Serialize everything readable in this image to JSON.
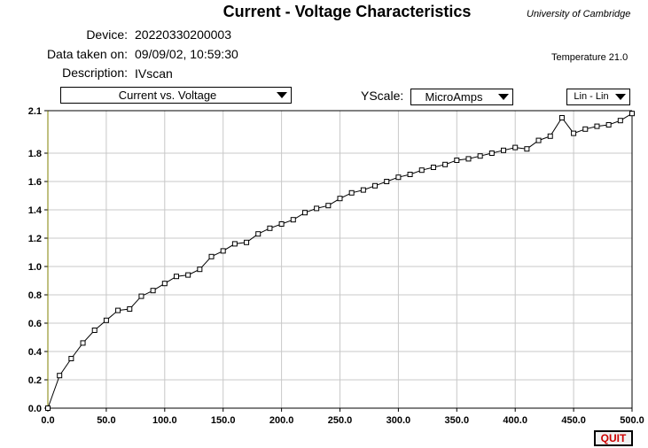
{
  "header": {
    "title": "Current - Voltage Characteristics",
    "university": "University of Cambridge",
    "device_label": "Device:",
    "device_value": "20220330200003",
    "date_label": "Data taken on:",
    "date_value": "09/09/02, 10:59:30",
    "description_label": "Description:",
    "description_value": "IVscan",
    "temperature": "Temperature 21.0"
  },
  "controls": {
    "plot_select": "Current vs. Voltage",
    "yscale_label": "YScale:",
    "yscale_select": "MicroAmps",
    "scale_select": "Lin - Lin",
    "quit_label": "QUIT"
  },
  "chart_data": {
    "type": "line",
    "title": "",
    "xlabel": "",
    "ylabel": "",
    "xlim": [
      0,
      500
    ],
    "ylim": [
      0,
      2.1
    ],
    "x_ticks": [
      "0.0",
      "50.0",
      "100.0",
      "150.0",
      "200.0",
      "250.0",
      "300.0",
      "350.0",
      "400.0",
      "450.0",
      "500.0"
    ],
    "y_ticks": [
      "0.0",
      "0.2",
      "0.4",
      "0.6",
      "0.8",
      "1.0",
      "1.2",
      "1.4",
      "1.6",
      "1.8",
      "2.1"
    ],
    "grid": true,
    "marker": "square",
    "series": [
      {
        "x": [
          0,
          10,
          20,
          30,
          40,
          50,
          60,
          70,
          80,
          90,
          100,
          110,
          120,
          130,
          140,
          150,
          160,
          170,
          180,
          190,
          200,
          210,
          220,
          230,
          240,
          250,
          260,
          270,
          280,
          290,
          300,
          310,
          320,
          330,
          340,
          350,
          360,
          370,
          380,
          390,
          400,
          410,
          420,
          430,
          440,
          450,
          460,
          470,
          480,
          490,
          500
        ],
        "y": [
          0.0,
          0.23,
          0.35,
          0.46,
          0.55,
          0.62,
          0.69,
          0.7,
          0.79,
          0.83,
          0.88,
          0.93,
          0.94,
          0.98,
          1.07,
          1.11,
          1.16,
          1.17,
          1.23,
          1.27,
          1.3,
          1.33,
          1.38,
          1.41,
          1.43,
          1.48,
          1.52,
          1.54,
          1.57,
          1.6,
          1.63,
          1.65,
          1.68,
          1.7,
          1.72,
          1.75,
          1.76,
          1.78,
          1.8,
          1.82,
          1.84,
          1.83,
          1.89,
          1.92,
          2.05,
          1.94,
          1.97,
          1.99,
          2.0,
          2.03,
          2.08
        ]
      }
    ]
  }
}
